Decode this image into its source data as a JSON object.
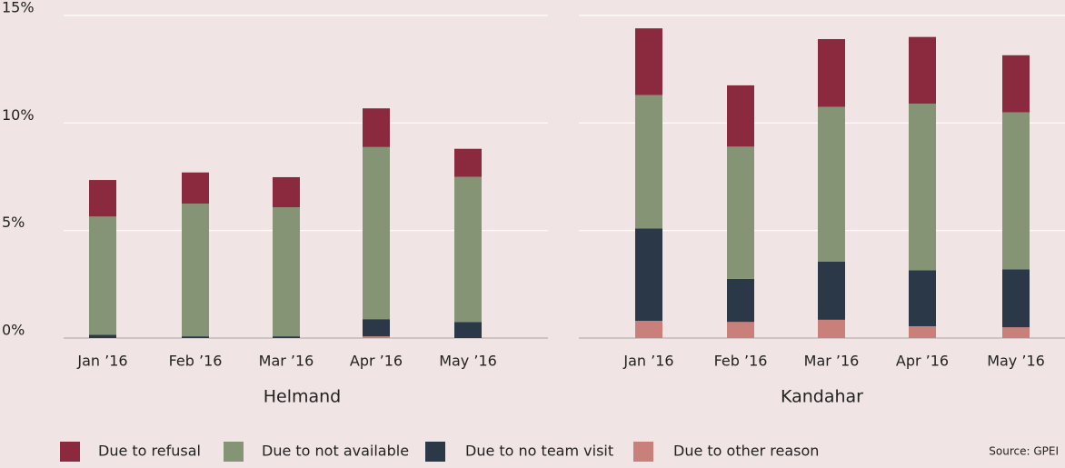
{
  "chart_data": [
    {
      "type": "stacked_bar",
      "xlabel": "Helmand",
      "categories": [
        "Jan ’16",
        "Feb ’16",
        "Mar ’16",
        "Apr ’16",
        "May ’16"
      ],
      "series": [
        {
          "name": "Due to refusal",
          "color": "#8b2a3e",
          "values": [
            1.7,
            1.45,
            1.4,
            1.8,
            1.3
          ]
        },
        {
          "name": "Due to not available",
          "color": "#849474",
          "values": [
            5.5,
            6.17,
            6.0,
            8.0,
            6.75
          ]
        },
        {
          "name": "Due to no team visit",
          "color": "#2b3847",
          "values": [
            0.15,
            0.08,
            0.08,
            0.8,
            0.75
          ]
        },
        {
          "name": "Due to other reason",
          "color": "#c9807a",
          "values": [
            0,
            0,
            0,
            0.08,
            0
          ]
        }
      ],
      "ylim": [
        0,
        15
      ],
      "yticks": [
        {
          "value": 0,
          "label": "0%"
        },
        {
          "value": 5,
          "label": "5%"
        },
        {
          "value": 10,
          "label": "10%"
        },
        {
          "value": 15,
          "label": "15%"
        }
      ],
      "grid": true
    },
    {
      "type": "stacked_bar",
      "xlabel": "Kandahar",
      "categories": [
        "Jan ’16",
        "Feb ’16",
        "Mar ’16",
        "Apr ’16",
        "May ’16"
      ],
      "series": [
        {
          "name": "Due to refusal",
          "color": "#8b2a3e",
          "values": [
            3.1,
            2.85,
            3.15,
            3.1,
            2.65
          ]
        },
        {
          "name": "Due to not available",
          "color": "#849474",
          "values": [
            6.2,
            6.15,
            7.2,
            7.75,
            7.3
          ]
        },
        {
          "name": "Due to no team visit",
          "color": "#2b3847",
          "values": [
            4.3,
            2.0,
            2.7,
            2.6,
            2.7
          ]
        },
        {
          "name": "Due to other reason",
          "color": "#c9807a",
          "values": [
            0.8,
            0.75,
            0.85,
            0.55,
            0.5
          ]
        }
      ],
      "ylim": [
        0,
        15
      ],
      "yticks": [
        0,
        5,
        10,
        15
      ],
      "grid": true
    }
  ],
  "source": "Source: GPEI"
}
